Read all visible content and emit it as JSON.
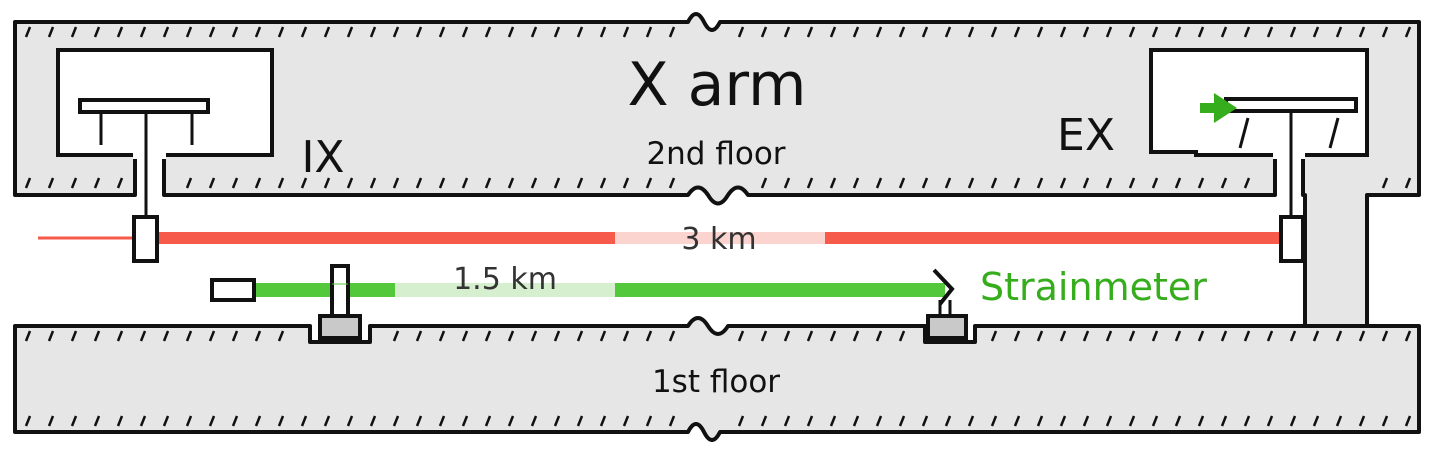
{
  "title": "X arm",
  "floors": {
    "upper": "2nd floor",
    "lower": "1st floor"
  },
  "stations": {
    "input": "IX",
    "end": "EX"
  },
  "beams": {
    "main": {
      "length_label": "3 km",
      "color": "#f65a4a",
      "faded_color": "#fbd4cf"
    },
    "strainmeter": {
      "length_label": "1.5 km",
      "color": "#52c83a",
      "faded_color": "#d6f0cf"
    }
  },
  "strainmeter_label": "Strainmeter",
  "colors": {
    "concrete_fill": "#e6e6e6",
    "outline": "#111111",
    "label_green": "#36ad1c",
    "mount_gray": "#c9c9c9"
  }
}
